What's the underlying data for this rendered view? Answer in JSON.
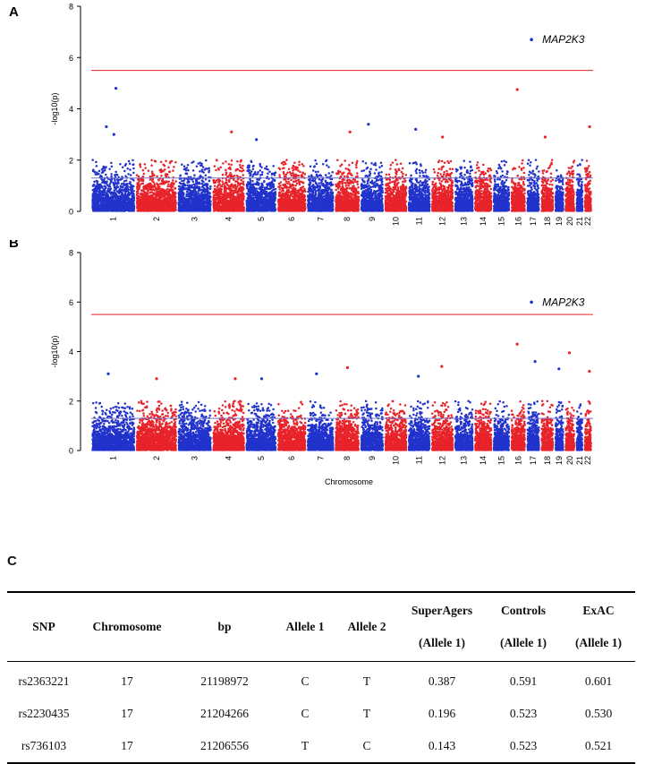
{
  "figure": {
    "panel_a_label": "A",
    "panel_b_label": "B",
    "panel_c_label": "C",
    "colors": {
      "blue": "#2233cc",
      "red": "#e8232a",
      "genome_line": "#e8232a",
      "suggestive_line": "#7777cc"
    }
  },
  "chart_data": [
    {
      "type": "scatter",
      "subtype": "manhattan",
      "panel": "A",
      "ylabel": "-log10(p)",
      "xlabel": "",
      "ylim": [
        0,
        8
      ],
      "yticks": [
        0,
        2,
        4,
        6,
        8
      ],
      "chromosomes": [
        "1",
        "2",
        "3",
        "4",
        "5",
        "6",
        "7",
        "8",
        "9",
        "10",
        "11",
        "12",
        "13",
        "14",
        "15",
        "16",
        "17",
        "18",
        "19",
        "20",
        "21",
        "22"
      ],
      "genome_wide_threshold": 5.5,
      "suggestive_threshold": 1.3,
      "top_hit": {
        "label": "MAP2K3",
        "chromosome": "17",
        "value": 6.7
      },
      "peaks": [
        {
          "chromosome": "1",
          "value": 4.8
        },
        {
          "chromosome": "1",
          "value": 3.3
        },
        {
          "chromosome": "1",
          "value": 3.0
        },
        {
          "chromosome": "4",
          "value": 3.1
        },
        {
          "chromosome": "5",
          "value": 2.8
        },
        {
          "chromosome": "8",
          "value": 3.1
        },
        {
          "chromosome": "9",
          "value": 3.4
        },
        {
          "chromosome": "11",
          "value": 3.2
        },
        {
          "chromosome": "12",
          "value": 2.9
        },
        {
          "chromosome": "16",
          "value": 4.75
        },
        {
          "chromosome": "18",
          "value": 2.9
        },
        {
          "chromosome": "22",
          "value": 3.3
        }
      ]
    },
    {
      "type": "scatter",
      "subtype": "manhattan",
      "panel": "B",
      "ylabel": "-log10(p)",
      "xlabel": "Chromosome",
      "ylim": [
        0,
        8
      ],
      "yticks": [
        0,
        2,
        4,
        6,
        8
      ],
      "chromosomes": [
        "1",
        "2",
        "3",
        "4",
        "5",
        "6",
        "7",
        "8",
        "9",
        "10",
        "11",
        "12",
        "13",
        "14",
        "15",
        "16",
        "17",
        "18",
        "19",
        "20",
        "21",
        "22"
      ],
      "genome_wide_threshold": 5.5,
      "suggestive_threshold": 1.3,
      "top_hit": {
        "label": "MAP2K3",
        "chromosome": "17",
        "value": 6.0
      },
      "peaks": [
        {
          "chromosome": "1",
          "value": 3.1
        },
        {
          "chromosome": "2",
          "value": 2.9
        },
        {
          "chromosome": "4",
          "value": 2.9
        },
        {
          "chromosome": "5",
          "value": 2.9
        },
        {
          "chromosome": "7",
          "value": 3.1
        },
        {
          "chromosome": "8",
          "value": 3.35
        },
        {
          "chromosome": "11",
          "value": 3.0
        },
        {
          "chromosome": "12",
          "value": 3.4
        },
        {
          "chromosome": "16",
          "value": 4.3
        },
        {
          "chromosome": "17",
          "value": 3.6
        },
        {
          "chromosome": "19",
          "value": 3.3
        },
        {
          "chromosome": "20",
          "value": 3.95
        },
        {
          "chromosome": "22",
          "value": 3.2
        }
      ]
    }
  ],
  "table": {
    "headers": {
      "snp": "SNP",
      "chromosome": "Chromosome",
      "bp": "bp",
      "allele1": "Allele 1",
      "allele2": "Allele 2",
      "superagers": "SuperAgers",
      "superagers_sub": "(Allele 1)",
      "controls": "Controls",
      "controls_sub": "(Allele 1)",
      "exac": "ExAC",
      "exac_sub": "(Allele 1)"
    },
    "rows": [
      {
        "snp": "rs2363221",
        "chromosome": "17",
        "bp": "21198972",
        "allele1": "C",
        "allele2": "T",
        "superagers": "0.387",
        "controls": "0.591",
        "exac": "0.601"
      },
      {
        "snp": "rs2230435",
        "chromosome": "17",
        "bp": "21204266",
        "allele1": "C",
        "allele2": "T",
        "superagers": "0.196",
        "controls": "0.523",
        "exac": "0.530"
      },
      {
        "snp": "rs736103",
        "chromosome": "17",
        "bp": "21206556",
        "allele1": "T",
        "allele2": "C",
        "superagers": "0.143",
        "controls": "0.523",
        "exac": "0.521"
      }
    ]
  }
}
